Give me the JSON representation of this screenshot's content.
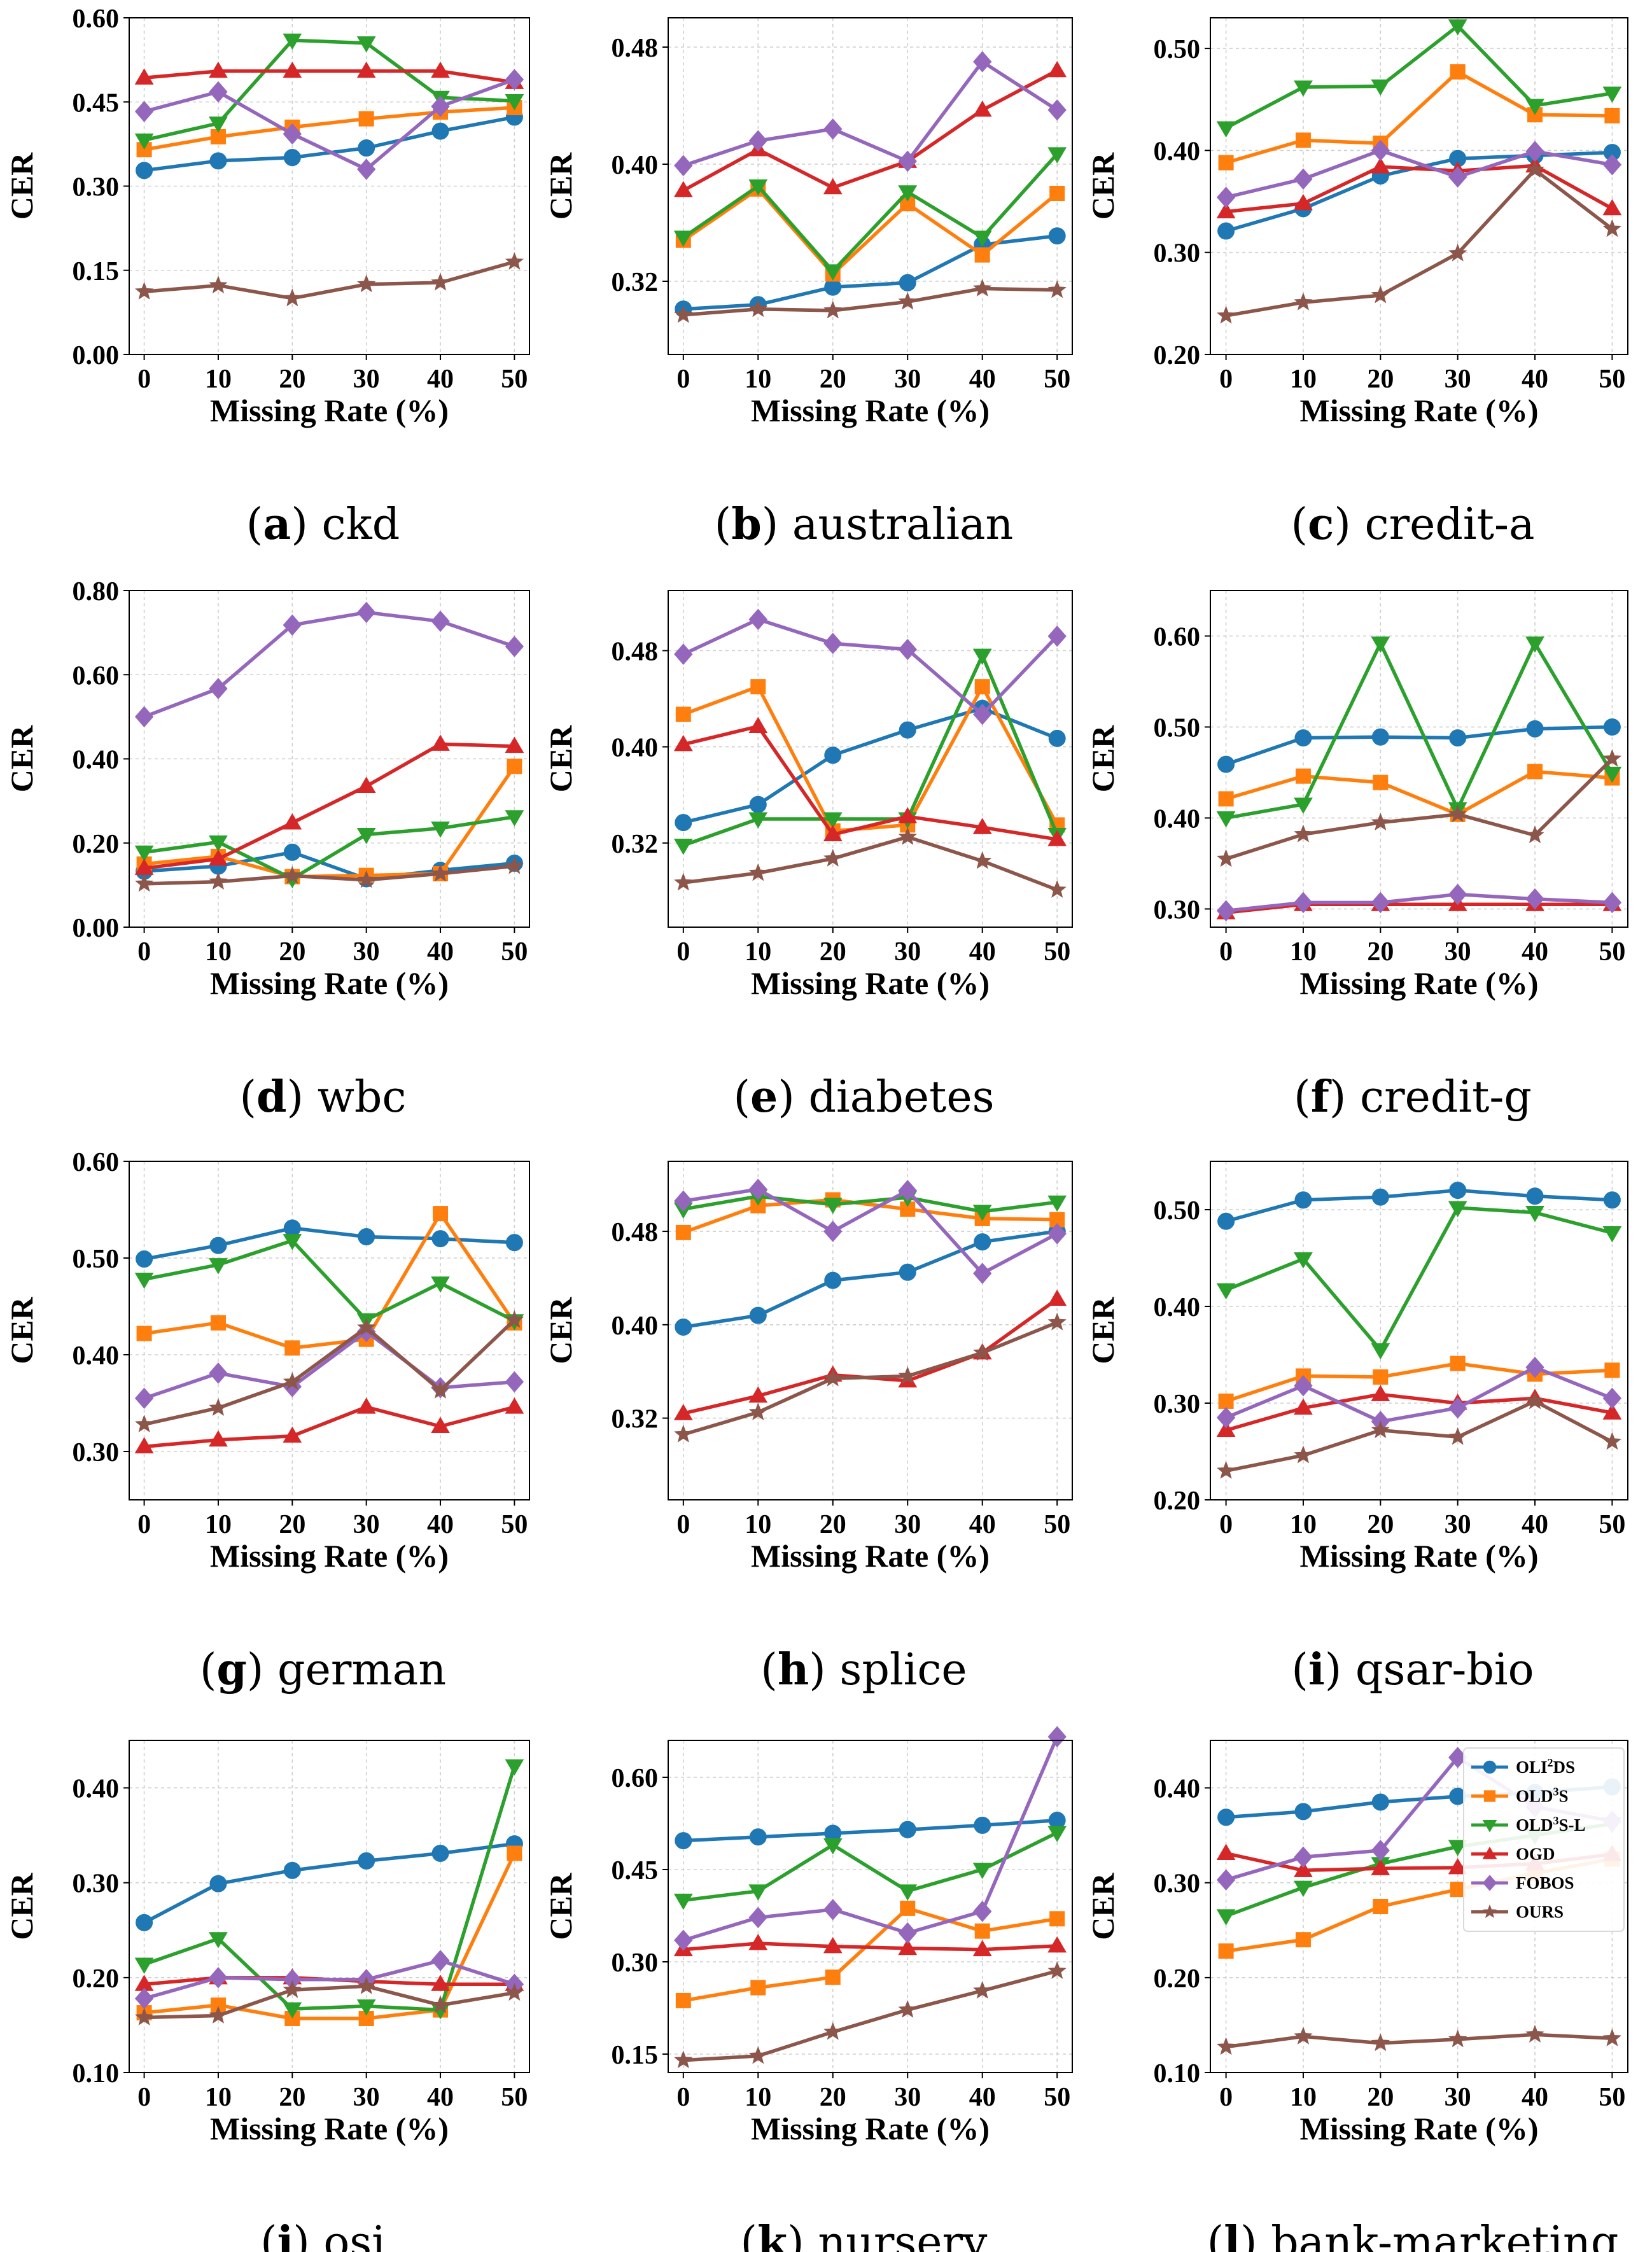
{
  "x_label": "Missing Rate (%)",
  "y_label": "CER",
  "colors": {
    "OLI2DS": "#1f77b4",
    "OLD3S": "#ff7f0e",
    "OLD3S-L": "#2ca02c",
    "OGD": "#d62728",
    "FOBOS": "#9467bd",
    "OURS": "#8c564b"
  },
  "legend": [
    {
      "key": "OLI2DS",
      "base": "OLI",
      "sup": "2",
      "rest": "DS",
      "marker": "circle"
    },
    {
      "key": "OLD3S",
      "base": "OLD",
      "sup": "3",
      "rest": "S",
      "marker": "square"
    },
    {
      "key": "OLD3S-L",
      "base": "OLD",
      "sup": "3",
      "rest": "S-L",
      "marker": "tri-down"
    },
    {
      "key": "OGD",
      "base": "OGD",
      "sup": "",
      "rest": "",
      "marker": "tri-up"
    },
    {
      "key": "FOBOS",
      "base": "FOBOS",
      "sup": "",
      "rest": "",
      "marker": "diamond"
    },
    {
      "key": "OURS",
      "base": "OURS",
      "sup": "",
      "rest": "",
      "marker": "star"
    }
  ],
  "chart_data": [
    {
      "type": "line",
      "caption_letter": "a",
      "caption_name": "ckd",
      "x": [
        0,
        10,
        20,
        30,
        40,
        50
      ],
      "ylim": [
        0,
        0.6
      ],
      "yticks": [
        "0.00",
        "0.15",
        "0.30",
        "0.45",
        "0.60"
      ],
      "series": [
        {
          "name": "OLI2DS",
          "values": [
            0.328,
            0.345,
            0.351,
            0.368,
            0.398,
            0.423
          ]
        },
        {
          "name": "OLD3S",
          "values": [
            0.365,
            0.388,
            0.405,
            0.42,
            0.432,
            0.44
          ]
        },
        {
          "name": "OLD3S-L",
          "values": [
            0.382,
            0.412,
            0.56,
            0.555,
            0.458,
            0.452
          ]
        },
        {
          "name": "OGD",
          "values": [
            0.493,
            0.505,
            0.505,
            0.505,
            0.505,
            0.485
          ]
        },
        {
          "name": "FOBOS",
          "values": [
            0.433,
            0.468,
            0.393,
            0.33,
            0.442,
            0.49
          ]
        },
        {
          "name": "OURS",
          "values": [
            0.112,
            0.123,
            0.1,
            0.125,
            0.128,
            0.165
          ]
        }
      ]
    },
    {
      "type": "line",
      "caption_letter": "b",
      "caption_name": "australian",
      "x": [
        0,
        10,
        20,
        30,
        40,
        50
      ],
      "ylim": [
        0.27,
        0.5
      ],
      "yticks": [
        "0.32",
        "0.40",
        "0.48"
      ],
      "series": [
        {
          "name": "OLI2DS",
          "values": [
            0.301,
            0.304,
            0.316,
            0.319,
            0.345,
            0.351
          ]
        },
        {
          "name": "OLD3S",
          "values": [
            0.348,
            0.383,
            0.325,
            0.373,
            0.338,
            0.38
          ]
        },
        {
          "name": "OLD3S-L",
          "values": [
            0.35,
            0.385,
            0.327,
            0.381,
            0.35,
            0.407
          ]
        },
        {
          "name": "OGD",
          "values": [
            0.382,
            0.41,
            0.384,
            0.402,
            0.437,
            0.464
          ]
        },
        {
          "name": "FOBOS",
          "values": [
            0.399,
            0.416,
            0.424,
            0.402,
            0.47,
            0.437
          ]
        },
        {
          "name": "OURS",
          "values": [
            0.297,
            0.301,
            0.3,
            0.306,
            0.315,
            0.314
          ]
        }
      ]
    },
    {
      "type": "line",
      "caption_letter": "c",
      "caption_name": "credit-a",
      "x": [
        0,
        10,
        20,
        30,
        40,
        50
      ],
      "ylim": [
        0.2,
        0.53
      ],
      "yticks": [
        "0.20",
        "0.30",
        "0.40",
        "0.50"
      ],
      "series": [
        {
          "name": "OLI2DS",
          "values": [
            0.321,
            0.343,
            0.375,
            0.392,
            0.395,
            0.398
          ]
        },
        {
          "name": "OLD3S",
          "values": [
            0.388,
            0.41,
            0.407,
            0.477,
            0.435,
            0.434
          ]
        },
        {
          "name": "OLD3S-L",
          "values": [
            0.422,
            0.462,
            0.463,
            0.522,
            0.444,
            0.456
          ]
        },
        {
          "name": "OGD",
          "values": [
            0.34,
            0.348,
            0.384,
            0.38,
            0.385,
            0.343
          ]
        },
        {
          "name": "FOBOS",
          "values": [
            0.354,
            0.372,
            0.4,
            0.374,
            0.399,
            0.386
          ]
        },
        {
          "name": "OURS",
          "values": [
            0.238,
            0.251,
            0.258,
            0.299,
            0.381,
            0.323
          ]
        }
      ]
    },
    {
      "type": "line",
      "caption_letter": "d",
      "caption_name": "wbc",
      "x": [
        0,
        10,
        20,
        30,
        40,
        50
      ],
      "ylim": [
        0,
        0.8
      ],
      "yticks": [
        "0.00",
        "0.20",
        "0.40",
        "0.60",
        "0.80"
      ],
      "series": [
        {
          "name": "OLI2DS",
          "values": [
            0.133,
            0.145,
            0.178,
            0.115,
            0.135,
            0.152
          ]
        },
        {
          "name": "OLD3S",
          "values": [
            0.15,
            0.168,
            0.12,
            0.123,
            0.127,
            0.382
          ]
        },
        {
          "name": "OLD3S-L",
          "values": [
            0.178,
            0.202,
            0.115,
            0.22,
            0.235,
            0.262
          ]
        },
        {
          "name": "OGD",
          "values": [
            0.14,
            0.162,
            0.248,
            0.335,
            0.435,
            0.43
          ]
        },
        {
          "name": "FOBOS",
          "values": [
            0.5,
            0.567,
            0.718,
            0.748,
            0.727,
            0.667
          ]
        },
        {
          "name": "OURS",
          "values": [
            0.103,
            0.108,
            0.122,
            0.112,
            0.127,
            0.145
          ]
        }
      ]
    },
    {
      "type": "line",
      "caption_letter": "e",
      "caption_name": "diabetes",
      "x": [
        0,
        10,
        20,
        30,
        40,
        50
      ],
      "ylim": [
        0.25,
        0.53
      ],
      "yticks": [
        "0.32",
        "0.40",
        "0.48"
      ],
      "series": [
        {
          "name": "OLI2DS",
          "values": [
            0.337,
            0.352,
            0.393,
            0.414,
            0.432,
            0.407
          ]
        },
        {
          "name": "OLD3S",
          "values": [
            0.427,
            0.45,
            0.33,
            0.335,
            0.45,
            0.335
          ]
        },
        {
          "name": "OLD3S-L",
          "values": [
            0.318,
            0.34,
            0.34,
            0.34,
            0.476,
            0.327
          ]
        },
        {
          "name": "OGD",
          "values": [
            0.402,
            0.417,
            0.327,
            0.342,
            0.333,
            0.323
          ]
        },
        {
          "name": "FOBOS",
          "values": [
            0.477,
            0.506,
            0.486,
            0.481,
            0.427,
            0.492
          ]
        },
        {
          "name": "OURS",
          "values": [
            0.287,
            0.295,
            0.307,
            0.325,
            0.305,
            0.281
          ]
        }
      ]
    },
    {
      "type": "line",
      "caption_letter": "f",
      "caption_name": "credit-g",
      "x": [
        0,
        10,
        20,
        30,
        40,
        50
      ],
      "ylim": [
        0.28,
        0.65
      ],
      "yticks": [
        "0.30",
        "0.40",
        "0.50",
        "0.60"
      ],
      "series": [
        {
          "name": "OLI2DS",
          "values": [
            0.459,
            0.488,
            0.489,
            0.488,
            0.498,
            0.5
          ]
        },
        {
          "name": "OLD3S",
          "values": [
            0.421,
            0.446,
            0.439,
            0.404,
            0.451,
            0.444
          ]
        },
        {
          "name": "OLD3S-L",
          "values": [
            0.4,
            0.415,
            0.592,
            0.41,
            0.592,
            0.449
          ]
        },
        {
          "name": "OGD",
          "values": [
            0.296,
            0.305,
            0.305,
            0.305,
            0.305,
            0.305
          ]
        },
        {
          "name": "FOBOS",
          "values": [
            0.298,
            0.307,
            0.307,
            0.316,
            0.311,
            0.307
          ]
        },
        {
          "name": "OURS",
          "values": [
            0.355,
            0.382,
            0.395,
            0.404,
            0.381,
            0.465
          ]
        }
      ]
    },
    {
      "type": "line",
      "caption_letter": "g",
      "caption_name": "german",
      "x": [
        0,
        10,
        20,
        30,
        40,
        50
      ],
      "ylim": [
        0.25,
        0.6
      ],
      "yticks": [
        "0.30",
        "0.40",
        "0.50",
        "0.60"
      ],
      "series": [
        {
          "name": "OLI2DS",
          "values": [
            0.499,
            0.513,
            0.531,
            0.522,
            0.52,
            0.516
          ]
        },
        {
          "name": "OLD3S",
          "values": [
            0.422,
            0.433,
            0.407,
            0.416,
            0.546,
            0.433
          ]
        },
        {
          "name": "OLD3S-L",
          "values": [
            0.478,
            0.493,
            0.518,
            0.436,
            0.474,
            0.435
          ]
        },
        {
          "name": "OGD",
          "values": [
            0.305,
            0.312,
            0.316,
            0.346,
            0.326,
            0.346
          ]
        },
        {
          "name": "FOBOS",
          "values": [
            0.355,
            0.381,
            0.367,
            0.424,
            0.366,
            0.372
          ]
        },
        {
          "name": "OURS",
          "values": [
            0.328,
            0.345,
            0.372,
            0.428,
            0.363,
            0.436
          ]
        }
      ]
    },
    {
      "type": "line",
      "caption_letter": "h",
      "caption_name": "splice",
      "x": [
        0,
        10,
        20,
        30,
        40,
        50
      ],
      "ylim": [
        0.25,
        0.54
      ],
      "yticks": [
        "0.32",
        "0.40",
        "0.48"
      ],
      "series": [
        {
          "name": "OLI2DS",
          "values": [
            0.398,
            0.408,
            0.438,
            0.445,
            0.471,
            0.48
          ]
        },
        {
          "name": "OLD3S",
          "values": [
            0.479,
            0.502,
            0.507,
            0.499,
            0.491,
            0.49
          ]
        },
        {
          "name": "OLD3S-L",
          "values": [
            0.499,
            0.51,
            0.503,
            0.509,
            0.497,
            0.505
          ]
        },
        {
          "name": "OGD",
          "values": [
            0.324,
            0.339,
            0.357,
            0.352,
            0.376,
            0.422
          ]
        },
        {
          "name": "FOBOS",
          "values": [
            0.506,
            0.516,
            0.48,
            0.515,
            0.444,
            0.478
          ]
        },
        {
          "name": "OURS",
          "values": [
            0.306,
            0.325,
            0.354,
            0.356,
            0.376,
            0.402
          ]
        }
      ]
    },
    {
      "type": "line",
      "caption_letter": "i",
      "caption_name": "qsar-bio",
      "x": [
        0,
        10,
        20,
        30,
        40,
        50
      ],
      "ylim": [
        0.2,
        0.55
      ],
      "yticks": [
        "0.20",
        "0.30",
        "0.40",
        "0.50"
      ],
      "series": [
        {
          "name": "OLI2DS",
          "values": [
            0.488,
            0.51,
            0.513,
            0.52,
            0.514,
            0.51
          ]
        },
        {
          "name": "OLD3S",
          "values": [
            0.302,
            0.328,
            0.327,
            0.341,
            0.33,
            0.334
          ]
        },
        {
          "name": "OLD3S-L",
          "values": [
            0.417,
            0.449,
            0.355,
            0.502,
            0.497,
            0.476
          ]
        },
        {
          "name": "OGD",
          "values": [
            0.272,
            0.295,
            0.309,
            0.3,
            0.305,
            0.29
          ]
        },
        {
          "name": "FOBOS",
          "values": [
            0.285,
            0.318,
            0.281,
            0.295,
            0.337,
            0.305
          ]
        },
        {
          "name": "OURS",
          "values": [
            0.23,
            0.246,
            0.272,
            0.265,
            0.302,
            0.26
          ]
        }
      ]
    },
    {
      "type": "line",
      "caption_letter": "j",
      "caption_name": "osi",
      "x": [
        0,
        10,
        20,
        30,
        40,
        50
      ],
      "ylim": [
        0.1,
        0.45
      ],
      "yticks": [
        "0.10",
        "0.20",
        "0.30",
        "0.40"
      ],
      "series": [
        {
          "name": "OLI2DS",
          "values": [
            0.258,
            0.299,
            0.313,
            0.323,
            0.331,
            0.341
          ]
        },
        {
          "name": "OLD3S",
          "values": [
            0.163,
            0.171,
            0.157,
            0.157,
            0.166,
            0.331
          ]
        },
        {
          "name": "OLD3S-L",
          "values": [
            0.214,
            0.241,
            0.167,
            0.17,
            0.166,
            0.423
          ]
        },
        {
          "name": "OGD",
          "values": [
            0.193,
            0.2,
            0.2,
            0.196,
            0.193,
            0.193
          ]
        },
        {
          "name": "FOBOS",
          "values": [
            0.178,
            0.2,
            0.198,
            0.198,
            0.218,
            0.193
          ]
        },
        {
          "name": "OURS",
          "values": [
            0.158,
            0.16,
            0.187,
            0.191,
            0.171,
            0.184
          ]
        }
      ]
    },
    {
      "type": "line",
      "caption_letter": "k",
      "caption_name": "nursery",
      "x": [
        0,
        10,
        20,
        30,
        40,
        50
      ],
      "ylim": [
        0.12,
        0.66
      ],
      "yticks": [
        "0.15",
        "0.30",
        "0.45",
        "0.60"
      ],
      "series": [
        {
          "name": "OLI2DS",
          "values": [
            0.497,
            0.503,
            0.509,
            0.515,
            0.522,
            0.53
          ]
        },
        {
          "name": "OLD3S",
          "values": [
            0.237,
            0.258,
            0.275,
            0.387,
            0.35,
            0.37
          ]
        },
        {
          "name": "OLD3S-L",
          "values": [
            0.4,
            0.415,
            0.49,
            0.415,
            0.45,
            0.51
          ]
        },
        {
          "name": "OGD",
          "values": [
            0.32,
            0.33,
            0.325,
            0.322,
            0.32,
            0.326
          ]
        },
        {
          "name": "FOBOS",
          "values": [
            0.335,
            0.372,
            0.385,
            0.347,
            0.382,
            0.666
          ]
        },
        {
          "name": "OURS",
          "values": [
            0.14,
            0.147,
            0.186,
            0.222,
            0.253,
            0.285
          ]
        }
      ]
    },
    {
      "type": "line",
      "caption_letter": "l",
      "caption_name": "bank-marketing",
      "x": [
        0,
        10,
        20,
        30,
        40,
        50
      ],
      "ylim": [
        0.1,
        0.45
      ],
      "yticks": [
        "0.10",
        "0.20",
        "0.30",
        "0.40"
      ],
      "series": [
        {
          "name": "OLI2DS",
          "values": [
            0.369,
            0.375,
            0.385,
            0.391,
            0.395,
            0.401
          ]
        },
        {
          "name": "OLD3S",
          "values": [
            0.228,
            0.24,
            0.275,
            0.293,
            0.31,
            0.325
          ]
        },
        {
          "name": "OLD3S-L",
          "values": [
            0.265,
            0.295,
            0.32,
            0.338,
            0.35,
            0.362
          ]
        },
        {
          "name": "OGD",
          "values": [
            0.331,
            0.313,
            0.315,
            0.316,
            0.32,
            0.33
          ]
        },
        {
          "name": "FOBOS",
          "values": [
            0.303,
            0.327,
            0.334,
            0.432,
            0.38,
            0.365
          ]
        },
        {
          "name": "OURS",
          "values": [
            0.127,
            0.138,
            0.131,
            0.135,
            0.14,
            0.136
          ]
        }
      ]
    }
  ]
}
